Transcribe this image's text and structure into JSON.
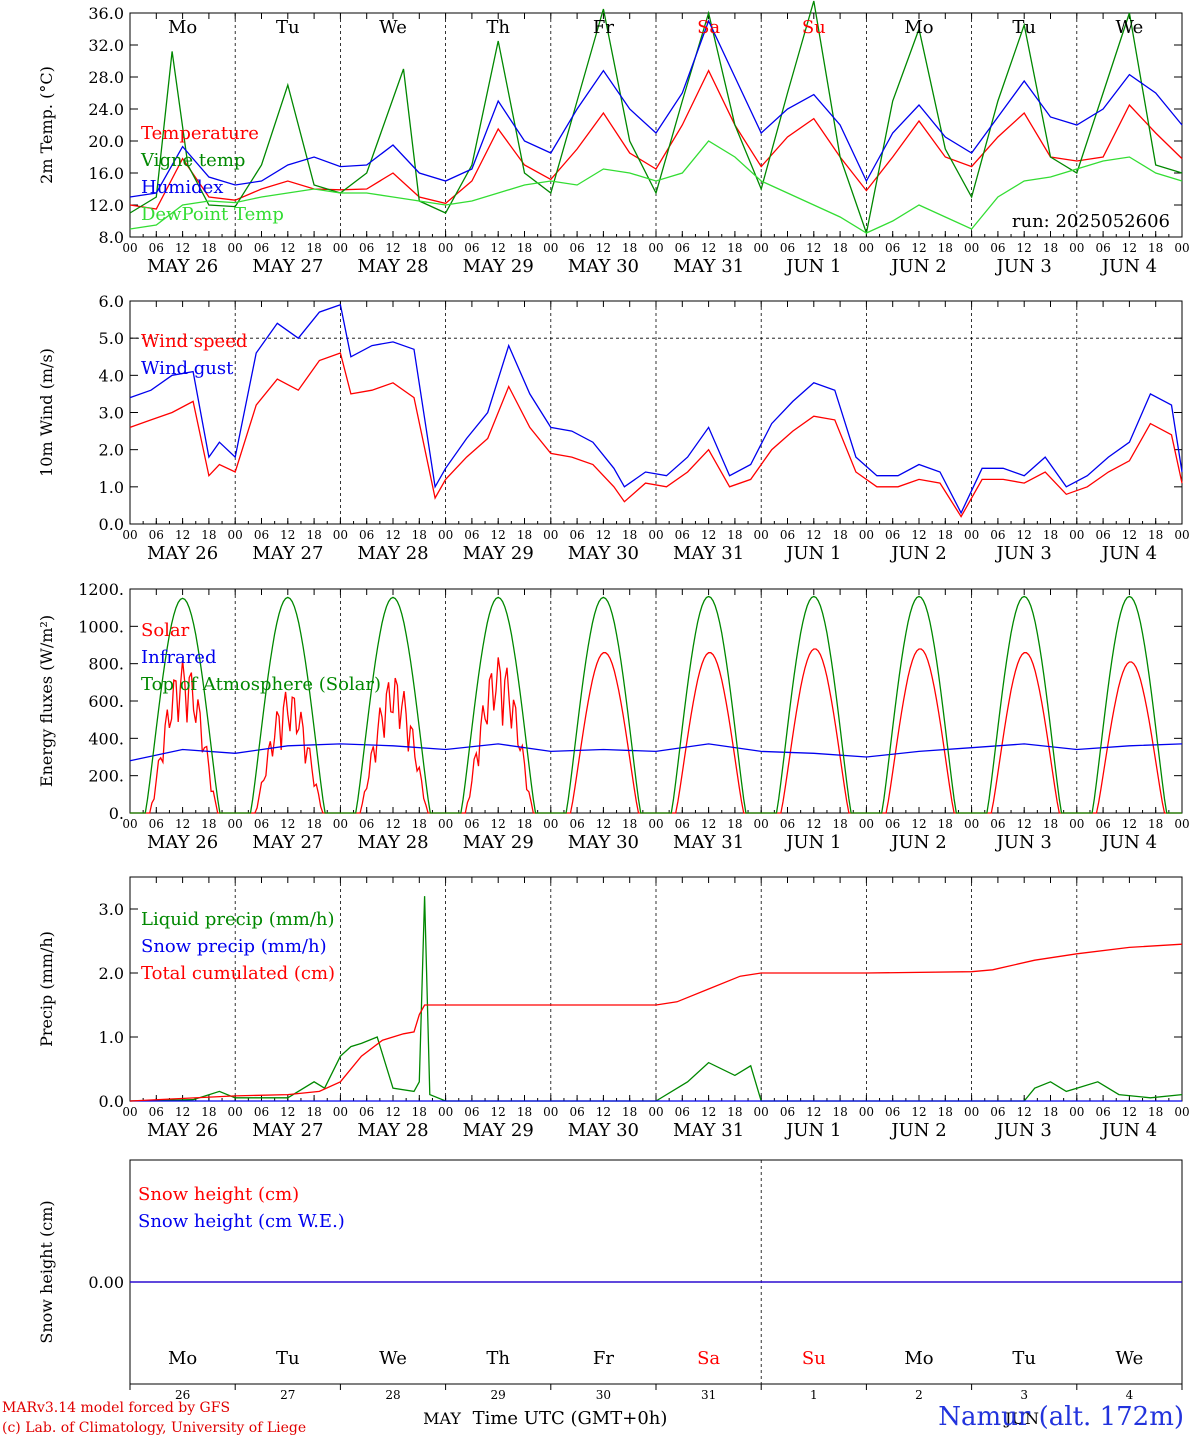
{
  "chart_data": [
    {
      "type": "line",
      "ylabel": "2m Temp. (°C)",
      "ylim": [
        8,
        36
      ],
      "yticks": [
        "8.0",
        "12.0",
        "16.0",
        "20.0",
        "24.0",
        "28.0",
        "32.0",
        "36.0"
      ],
      "x_unit": "days since 2025-05-26 00 UTC",
      "day_labels": [
        "Mo",
        "Tu",
        "We",
        "Th",
        "Fr",
        "Sa",
        "Su",
        "Mo",
        "Tu",
        "We"
      ],
      "weekend_days": [
        "Sa",
        "Su"
      ],
      "date_labels": [
        "MAY 26",
        "MAY 27",
        "MAY 28",
        "MAY 29",
        "MAY 30",
        "MAY 31",
        "JUN  1",
        "JUN  2",
        "JUN  3",
        "JUN  4"
      ],
      "run_label": "run: 2025052606",
      "series": [
        {
          "name": "Temperature",
          "color": "#ff0000",
          "x": [
            0,
            0.25,
            0.5,
            0.75,
            1,
            1.25,
            1.5,
            1.75,
            2,
            2.25,
            2.5,
            2.75,
            3,
            3.25,
            3.5,
            3.75,
            4,
            4.25,
            4.5,
            4.75,
            5,
            5.25,
            5.5,
            5.75,
            6,
            6.25,
            6.5,
            6.75,
            7,
            7.25,
            7.5,
            7.75,
            8,
            8.25,
            8.5,
            8.75,
            9,
            9.25,
            9.5,
            9.75,
            10
          ],
          "y": [
            12.0,
            11.5,
            17.8,
            13.0,
            12.6,
            14.0,
            15.0,
            14.0,
            13.9,
            14.0,
            16.0,
            13.0,
            12.2,
            15.0,
            21.5,
            17.0,
            15.2,
            19.0,
            23.5,
            18.5,
            16.5,
            22.0,
            28.8,
            22.0,
            16.8,
            20.5,
            22.8,
            18.0,
            13.8,
            18.0,
            22.5,
            18.0,
            16.8,
            20.5,
            23.5,
            18.0,
            17.5,
            18.0,
            24.5,
            21.0,
            17.8
          ]
        },
        {
          "name": "Vigne temp",
          "color": "#008800",
          "x": [
            0,
            0.25,
            0.4,
            0.55,
            0.75,
            1,
            1.25,
            1.5,
            1.75,
            2,
            2.25,
            2.6,
            2.75,
            3,
            3.25,
            3.5,
            3.75,
            4,
            4.25,
            4.5,
            4.75,
            5,
            5.25,
            5.5,
            5.75,
            6,
            6.25,
            6.5,
            6.75,
            7,
            7.25,
            7.5,
            7.75,
            8,
            8.25,
            8.5,
            8.75,
            9,
            9.25,
            9.5,
            9.75,
            10
          ],
          "y": [
            11.0,
            13.0,
            31.2,
            17.0,
            12.0,
            11.8,
            17.0,
            27.0,
            14.5,
            13.5,
            16.0,
            29.0,
            12.5,
            11.0,
            17.0,
            32.5,
            16.0,
            13.5,
            25.0,
            36.5,
            20.0,
            13.5,
            25.0,
            36.0,
            22.0,
            14.0,
            26.0,
            37.5,
            18.0,
            8.5,
            25.0,
            34.0,
            19.0,
            13.0,
            25.0,
            34.5,
            18.0,
            16.0,
            26.0,
            36.0,
            17.0,
            16.0
          ]
        },
        {
          "name": "Humidex",
          "color": "#0000ee",
          "x": [
            0,
            0.25,
            0.5,
            0.75,
            1,
            1.25,
            1.5,
            1.75,
            2,
            2.25,
            2.5,
            2.75,
            3,
            3.25,
            3.5,
            3.75,
            4,
            4.25,
            4.5,
            4.75,
            5,
            5.25,
            5.5,
            5.75,
            6,
            6.25,
            6.5,
            6.75,
            7,
            7.25,
            7.5,
            7.75,
            8,
            8.25,
            8.5,
            8.75,
            9,
            9.25,
            9.5,
            9.75,
            10
          ],
          "y": [
            13.0,
            13.5,
            19.3,
            15.5,
            14.5,
            15.0,
            17.0,
            18.0,
            16.8,
            17.0,
            19.5,
            16.0,
            15.0,
            16.5,
            25.0,
            20.0,
            18.5,
            24.0,
            28.8,
            24.0,
            21.0,
            26.0,
            35.0,
            28.0,
            21.0,
            24.0,
            25.8,
            22.0,
            15.0,
            21.0,
            24.5,
            20.5,
            18.5,
            23.0,
            27.5,
            23.0,
            22.0,
            24.0,
            28.3,
            26.0,
            22.0
          ]
        },
        {
          "name": "DewPoint Temp",
          "color": "#33dd33",
          "x": [
            0,
            0.25,
            0.5,
            0.75,
            1,
            1.25,
            1.5,
            1.75,
            2,
            2.25,
            2.5,
            2.75,
            3,
            3.25,
            3.5,
            3.75,
            4,
            4.25,
            4.5,
            4.75,
            5,
            5.25,
            5.5,
            5.75,
            6,
            6.25,
            6.5,
            6.75,
            7,
            7.25,
            7.5,
            7.75,
            8,
            8.25,
            8.5,
            8.75,
            9,
            9.25,
            9.5,
            9.75,
            10
          ],
          "y": [
            9.0,
            9.5,
            12.0,
            12.5,
            12.3,
            13.0,
            13.5,
            14.0,
            13.5,
            13.5,
            13.0,
            12.5,
            12.0,
            12.5,
            13.5,
            14.5,
            15.0,
            14.5,
            16.5,
            16.0,
            15.0,
            16.0,
            20.0,
            18.0,
            15.0,
            13.5,
            12.0,
            10.5,
            8.5,
            10.0,
            12.0,
            10.5,
            9.0,
            13.0,
            15.0,
            15.5,
            16.5,
            17.5,
            18.0,
            16.0,
            15.0
          ]
        }
      ]
    },
    {
      "type": "line",
      "ylabel": "10m Wind (m/s)",
      "ylim": [
        0,
        6
      ],
      "yticks": [
        "0.0",
        "1.0",
        "2.0",
        "3.0",
        "4.0",
        "5.0",
        "6.0"
      ],
      "x_unit": "days since 2025-05-26 00 UTC",
      "date_labels": [
        "MAY 26",
        "MAY 27",
        "MAY 28",
        "MAY 29",
        "MAY 30",
        "MAY 31",
        "JUN  1",
        "JUN  2",
        "JUN  3",
        "JUN  4"
      ],
      "ref_line": 5.0,
      "series": [
        {
          "name": "Wind speed",
          "color": "#ff0000",
          "x": [
            0,
            0.2,
            0.4,
            0.6,
            0.75,
            0.85,
            1,
            1.2,
            1.4,
            1.6,
            1.8,
            2,
            2.1,
            2.3,
            2.5,
            2.7,
            2.9,
            3,
            3.2,
            3.4,
            3.6,
            3.8,
            4,
            4.2,
            4.4,
            4.6,
            4.7,
            4.9,
            5.1,
            5.3,
            5.5,
            5.7,
            5.9,
            6.1,
            6.3,
            6.5,
            6.7,
            6.9,
            7.1,
            7.3,
            7.5,
            7.7,
            7.9,
            8.1,
            8.3,
            8.5,
            8.7,
            8.9,
            9.1,
            9.3,
            9.5,
            9.7,
            9.9,
            10
          ],
          "y": [
            2.6,
            2.8,
            3.0,
            3.3,
            1.3,
            1.6,
            1.4,
            3.2,
            3.9,
            3.6,
            4.4,
            4.6,
            3.5,
            3.6,
            3.8,
            3.4,
            0.7,
            1.2,
            1.8,
            2.3,
            3.7,
            2.6,
            1.9,
            1.8,
            1.6,
            1.0,
            0.6,
            1.1,
            1.0,
            1.4,
            2.0,
            1.0,
            1.2,
            2.0,
            2.5,
            2.9,
            2.8,
            1.4,
            1.0,
            1.0,
            1.2,
            1.1,
            0.2,
            1.2,
            1.2,
            1.1,
            1.4,
            0.8,
            1.0,
            1.4,
            1.7,
            2.7,
            2.4,
            1.1
          ]
        },
        {
          "name": "Wind gust",
          "color": "#0000ee",
          "x": [
            0,
            0.2,
            0.4,
            0.6,
            0.75,
            0.85,
            1,
            1.2,
            1.4,
            1.6,
            1.8,
            2,
            2.1,
            2.3,
            2.5,
            2.7,
            2.9,
            3,
            3.2,
            3.4,
            3.6,
            3.8,
            4,
            4.2,
            4.4,
            4.6,
            4.7,
            4.9,
            5.1,
            5.3,
            5.5,
            5.7,
            5.9,
            6.1,
            6.3,
            6.5,
            6.7,
            6.9,
            7.1,
            7.3,
            7.5,
            7.7,
            7.9,
            8.1,
            8.3,
            8.5,
            8.7,
            8.9,
            9.1,
            9.3,
            9.5,
            9.7,
            9.9,
            10
          ],
          "y": [
            3.4,
            3.6,
            4.0,
            4.1,
            1.8,
            2.2,
            1.8,
            4.6,
            5.4,
            5.0,
            5.7,
            5.9,
            4.5,
            4.8,
            4.9,
            4.7,
            1.0,
            1.5,
            2.3,
            3.0,
            4.8,
            3.5,
            2.6,
            2.5,
            2.2,
            1.5,
            1.0,
            1.4,
            1.3,
            1.8,
            2.6,
            1.3,
            1.6,
            2.7,
            3.3,
            3.8,
            3.6,
            1.8,
            1.3,
            1.3,
            1.6,
            1.4,
            0.3,
            1.5,
            1.5,
            1.3,
            1.8,
            1.0,
            1.3,
            1.8,
            2.2,
            3.5,
            3.2,
            1.4
          ]
        }
      ]
    },
    {
      "type": "line",
      "ylabel": "Energy fluxes (W/m²)",
      "ylim": [
        0,
        1200
      ],
      "yticks": [
        "0.",
        "200.",
        "400.",
        "600.",
        "800.",
        "1000.",
        "1200."
      ],
      "x_unit": "days since 2025-05-26 00 UTC",
      "date_labels": [
        "MAY 26",
        "MAY 27",
        "MAY 28",
        "MAY 29",
        "MAY 30",
        "MAY 31",
        "JUN  1",
        "JUN  2",
        "JUN  3",
        "JUN  4"
      ],
      "daily_peaks": {
        "Solar": [
          820,
          660,
          740,
          840,
          860,
          860,
          880,
          880,
          860,
          810
        ],
        "Top of Atmosphere (Solar)": [
          1150,
          1155,
          1155,
          1155,
          1155,
          1160,
          1160,
          1160,
          1160,
          1160
        ]
      },
      "series": [
        {
          "name": "Solar",
          "color": "#ff0000"
        },
        {
          "name": "Infrared",
          "color": "#0000ee",
          "x": [
            0,
            0.5,
            1,
            1.5,
            2,
            2.5,
            3,
            3.5,
            4,
            4.5,
            5,
            5.5,
            6,
            6.5,
            7,
            7.5,
            8,
            8.5,
            9,
            9.5,
            10
          ],
          "y": [
            280,
            340,
            320,
            360,
            370,
            360,
            340,
            370,
            330,
            340,
            330,
            370,
            330,
            320,
            300,
            330,
            350,
            370,
            340,
            360,
            370
          ]
        },
        {
          "name": "Top of Atmosphere (Solar)",
          "color": "#008800"
        }
      ]
    },
    {
      "type": "line",
      "ylabel": "Precip (mm/h)",
      "ylim": [
        0,
        3.5
      ],
      "yticks": [
        "0.0",
        "1.0",
        "2.0",
        "3.0"
      ],
      "x_unit": "days since 2025-05-26 00 UTC",
      "date_labels": [
        "MAY 26",
        "MAY 27",
        "MAY 28",
        "MAY 29",
        "MAY 30",
        "MAY 31",
        "JUN  1",
        "JUN  2",
        "JUN  3",
        "JUN  4"
      ],
      "series": [
        {
          "name": "Liquid precip (mm/h)",
          "color": "#008800",
          "x": [
            0,
            0.6,
            0.85,
            1,
            1.5,
            1.75,
            1.85,
            2,
            2.1,
            2.2,
            2.35,
            2.5,
            2.7,
            2.75,
            2.8,
            2.85,
            3,
            5,
            5.3,
            5.5,
            5.75,
            5.9,
            6,
            8.5,
            8.6,
            8.75,
            8.9,
            9,
            9.2,
            9.4,
            9.7,
            10
          ],
          "y": [
            0,
            0.02,
            0.15,
            0.05,
            0.05,
            0.3,
            0.2,
            0.7,
            0.85,
            0.9,
            1.0,
            0.2,
            0.15,
            0.3,
            3.2,
            0.1,
            0,
            0,
            0.3,
            0.6,
            0.4,
            0.55,
            0,
            0,
            0.2,
            0.3,
            0.15,
            0.2,
            0.3,
            0.1,
            0.05,
            0.1
          ]
        },
        {
          "name": "Snow precip (mm/h)",
          "color": "#0000ee",
          "x": [
            0,
            10
          ],
          "y": [
            0,
            0
          ]
        },
        {
          "name": "Total cumulated (cm)",
          "color": "#ff0000",
          "x": [
            0,
            1,
            1.5,
            1.8,
            2,
            2.2,
            2.4,
            2.6,
            2.7,
            2.75,
            2.8,
            5,
            5.2,
            5.5,
            5.8,
            6,
            7,
            8,
            8.2,
            8.6,
            9,
            9.5,
            10
          ],
          "y": [
            0,
            0.08,
            0.1,
            0.15,
            0.3,
            0.7,
            0.95,
            1.05,
            1.08,
            1.35,
            1.5,
            1.5,
            1.55,
            1.75,
            1.95,
            2.0,
            2.0,
            2.02,
            2.05,
            2.2,
            2.3,
            2.4,
            2.45
          ]
        }
      ]
    },
    {
      "type": "line",
      "ylabel": "Snow height (cm)",
      "yticks": [
        "0.00"
      ],
      "x_unit": "days since 2025-05-26 00 UTC",
      "day_labels": [
        "Mo",
        "Tu",
        "We",
        "Th",
        "Fr",
        "Sa",
        "Su",
        "Mo",
        "Tu",
        "We"
      ],
      "day_numbers": [
        "26",
        "27",
        "28",
        "29",
        "30",
        "31",
        "1",
        "2",
        "3",
        "4"
      ],
      "month_labels": [
        "MAY",
        "JUN"
      ],
      "xlabel": "Time UTC (GMT+0h)",
      "series": [
        {
          "name": "Snow height (cm)",
          "color": "#ff0000",
          "x": [
            0,
            10
          ],
          "y": [
            0,
            0
          ]
        },
        {
          "name": "Snow height (cm W.E.)",
          "color": "#0000ee",
          "x": [
            0,
            10
          ],
          "y": [
            0,
            0
          ]
        }
      ]
    }
  ],
  "hour_labels": [
    "00",
    "06",
    "12",
    "18"
  ],
  "credits": {
    "line1": "MARv3.14 model forced by GFS",
    "line2": "(c) Lab. of Climatology, University of Liege"
  },
  "station": "Namur (alt. 172m)"
}
